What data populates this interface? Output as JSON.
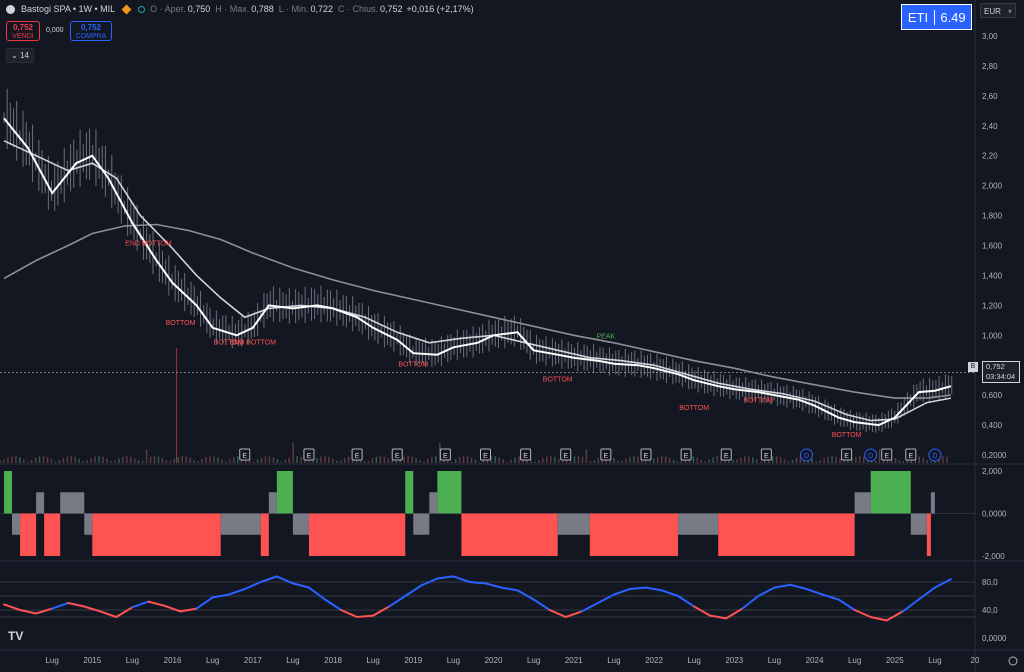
{
  "header": {
    "symbol": "Bastogi SPA • 1W • MIL",
    "open_label": "O · Aper.",
    "open": "0,750",
    "high_label": "H · Max.",
    "high": "0,788",
    "low_label": "L · Min.",
    "low": "0,722",
    "close_label": "C · Chius.",
    "close": "0,752",
    "change": "+0,016 (+2,17%)"
  },
  "trade": {
    "sell_price": "0,752",
    "sell_label": "VENDI",
    "spread": "0,000",
    "buy_price": "0,752",
    "buy_label": "COMPRA"
  },
  "indicator_toggle": "14",
  "badge": {
    "label": "ETI",
    "value": "6.49",
    "color": "#2962ff"
  },
  "currency": "EUR",
  "price_label": {
    "marker": "B",
    "price": "0,752",
    "countdown": "03:34:04"
  },
  "colors": {
    "background": "#131722",
    "bull": "#4caf50",
    "bear": "#ff5252",
    "neutral": "#787b86",
    "osc_up": "#2962ff",
    "osc_down": "#ff5252"
  },
  "chart_data": [
    {
      "type": "line",
      "title": "",
      "price_axis": [
        "3,00",
        "2,80",
        "2,60",
        "2,40",
        "2,20",
        "2,000",
        "1,800",
        "1,600",
        "1,400",
        "1,200",
        "1,000",
        "0,800",
        "0,600",
        "0,400",
        "0,2000"
      ],
      "ylim": [
        0.2,
        3.0
      ],
      "x_ticks": [
        "Lug",
        "2015",
        "Lug",
        "2016",
        "Lug",
        "2017",
        "Lug",
        "2018",
        "Lug",
        "2019",
        "Lug",
        "2020",
        "Lug",
        "2021",
        "Lug",
        "2022",
        "Lug",
        "2023",
        "Lug",
        "2024",
        "Lug",
        "2025",
        "Lug",
        "20"
      ],
      "x_years": [
        2014.5,
        2015,
        2015.5,
        2016,
        2016.5,
        2017,
        2017.5,
        2018,
        2018.5,
        2019,
        2019.5,
        2020,
        2020.5,
        2021,
        2021.5,
        2022,
        2022.5,
        2023,
        2023.5,
        2024,
        2024.5,
        2025,
        2025.5,
        2026
      ],
      "series": [
        {
          "color": "#ffffff",
          "x": [
            2013.9,
            2014.2,
            2014.5,
            2014.8,
            2015.0,
            2015.2,
            2015.5,
            2015.8,
            2016.0,
            2016.3,
            2016.5,
            2016.8,
            2017.0,
            2017.2,
            2017.5,
            2017.8,
            2018.0,
            2018.3,
            2018.5,
            2018.8,
            2019.0,
            2019.3,
            2019.5,
            2019.8,
            2020.0,
            2020.3,
            2020.5,
            2020.8,
            2021.0,
            2021.3,
            2021.5,
            2021.8,
            2022.0,
            2022.3,
            2022.5,
            2022.8,
            2023.0,
            2023.3,
            2023.5,
            2023.8,
            2024.0,
            2024.3,
            2024.5,
            2024.8,
            2025.0,
            2025.3,
            2025.5,
            2025.7
          ],
          "y": [
            2.45,
            2.25,
            1.95,
            2.15,
            2.2,
            2.05,
            1.75,
            1.5,
            1.35,
            1.2,
            1.05,
            1.0,
            1.05,
            1.2,
            1.18,
            1.2,
            1.18,
            1.12,
            1.05,
            0.97,
            0.88,
            0.87,
            0.92,
            0.95,
            1.0,
            1.02,
            0.9,
            0.87,
            0.85,
            0.83,
            0.81,
            0.8,
            0.78,
            0.74,
            0.7,
            0.66,
            0.64,
            0.62,
            0.6,
            0.57,
            0.53,
            0.45,
            0.42,
            0.4,
            0.45,
            0.62,
            0.63,
            0.66
          ]
        },
        {
          "color": "#d1d4dc",
          "x": [
            2013.9,
            2014.3,
            2014.7,
            2015.0,
            2015.3,
            2015.6,
            2016.0,
            2016.3,
            2016.6,
            2016.9,
            2017.2,
            2017.6,
            2018.0,
            2018.4,
            2018.8,
            2019.2,
            2019.6,
            2020.0,
            2020.4,
            2020.8,
            2021.2,
            2021.6,
            2022.0,
            2022.4,
            2022.8,
            2023.2,
            2023.6,
            2024.0,
            2024.4,
            2024.7,
            2025.0,
            2025.4,
            2025.7
          ],
          "y": [
            2.3,
            2.2,
            2.1,
            2.15,
            2.05,
            1.8,
            1.58,
            1.4,
            1.25,
            1.12,
            1.18,
            1.2,
            1.18,
            1.12,
            1.02,
            0.95,
            0.98,
            1.0,
            0.95,
            0.9,
            0.85,
            0.83,
            0.8,
            0.74,
            0.68,
            0.64,
            0.61,
            0.56,
            0.47,
            0.43,
            0.44,
            0.55,
            0.58
          ]
        },
        {
          "color": "#8c8f99",
          "x": [
            2013.9,
            2014.3,
            2014.7,
            2015.0,
            2015.4,
            2015.8,
            2016.2,
            2016.6,
            2017.0,
            2017.5,
            2018.0,
            2018.5,
            2019.0,
            2019.5,
            2020.0,
            2020.5,
            2021.0,
            2021.5,
            2022.0,
            2022.5,
            2023.0,
            2023.5,
            2024.0,
            2024.5,
            2025.0,
            2025.4,
            2025.7
          ],
          "y": [
            1.38,
            1.5,
            1.6,
            1.68,
            1.73,
            1.74,
            1.7,
            1.64,
            1.55,
            1.45,
            1.37,
            1.3,
            1.24,
            1.18,
            1.12,
            1.06,
            1.0,
            0.95,
            0.89,
            0.83,
            0.78,
            0.72,
            0.67,
            0.62,
            0.58,
            0.58,
            0.6
          ]
        }
      ],
      "annotations": [
        {
          "text": "END BOTTOM",
          "x": 2015.7,
          "y": 1.6,
          "color": "#ff5252"
        },
        {
          "text": "BOTTOM",
          "x": 2016.1,
          "y": 1.07,
          "color": "#ff5252"
        },
        {
          "text": "BOTTOM",
          "x": 2016.7,
          "y": 0.94,
          "color": "#ff5252"
        },
        {
          "text": "END BOTTOM",
          "x": 2017.0,
          "y": 0.94,
          "color": "#ff5252"
        },
        {
          "text": "BOTTOM",
          "x": 2019.0,
          "y": 0.79,
          "color": "#ff5252"
        },
        {
          "text": "PEAK",
          "x": 2021.4,
          "y": 0.98,
          "color": "#4caf50"
        },
        {
          "text": "BOTTOM",
          "x": 2020.8,
          "y": 0.69,
          "color": "#ff5252"
        },
        {
          "text": "BOTTOM",
          "x": 2022.5,
          "y": 0.5,
          "color": "#ff5252"
        },
        {
          "text": "BOTTOM",
          "x": 2023.3,
          "y": 0.55,
          "color": "#ff5252"
        },
        {
          "text": "BOTTOM",
          "x": 2024.4,
          "y": 0.32,
          "color": "#ff5252"
        }
      ],
      "event_markers": [
        {
          "x": 2016.9,
          "label": "E"
        },
        {
          "x": 2017.7,
          "label": "E"
        },
        {
          "x": 2018.3,
          "label": "E"
        },
        {
          "x": 2018.8,
          "label": "E"
        },
        {
          "x": 2019.4,
          "label": "E"
        },
        {
          "x": 2019.9,
          "label": "E"
        },
        {
          "x": 2020.4,
          "label": "E"
        },
        {
          "x": 2020.9,
          "label": "E"
        },
        {
          "x": 2021.4,
          "label": "E"
        },
        {
          "x": 2021.9,
          "label": "E"
        },
        {
          "x": 2022.4,
          "label": "E"
        },
        {
          "x": 2022.9,
          "label": "E"
        },
        {
          "x": 2023.4,
          "label": "E"
        },
        {
          "x": 2023.9,
          "label": "D"
        },
        {
          "x": 2024.4,
          "label": "E"
        },
        {
          "x": 2024.7,
          "label": "D"
        },
        {
          "x": 2024.9,
          "label": "E"
        },
        {
          "x": 2025.2,
          "label": "E"
        },
        {
          "x": 2025.5,
          "label": "D"
        }
      ]
    },
    {
      "type": "bar",
      "axis": [
        "2,000",
        "0,0000",
        "-2,000"
      ],
      "ylim": [
        -2,
        2
      ],
      "segments": [
        {
          "x0": 2013.9,
          "x1": 2014.0,
          "v": 2,
          "state": "bull"
        },
        {
          "x0": 2014.0,
          "x1": 2014.1,
          "v": -1,
          "state": "neutral"
        },
        {
          "x0": 2014.1,
          "x1": 2014.3,
          "v": -2,
          "state": "bear"
        },
        {
          "x0": 2014.3,
          "x1": 2014.4,
          "v": 1,
          "state": "neutral"
        },
        {
          "x0": 2014.4,
          "x1": 2014.6,
          "v": -2,
          "state": "bear"
        },
        {
          "x0": 2014.6,
          "x1": 2014.9,
          "v": 1,
          "state": "neutral"
        },
        {
          "x0": 2014.9,
          "x1": 2015.0,
          "v": -1,
          "state": "neutral"
        },
        {
          "x0": 2015.0,
          "x1": 2016.6,
          "v": -2,
          "state": "bear"
        },
        {
          "x0": 2016.6,
          "x1": 2017.1,
          "v": -1,
          "state": "neutral"
        },
        {
          "x0": 2017.1,
          "x1": 2017.2,
          "v": -2,
          "state": "bear"
        },
        {
          "x0": 2017.2,
          "x1": 2017.3,
          "v": 1,
          "state": "neutral"
        },
        {
          "x0": 2017.3,
          "x1": 2017.5,
          "v": 2,
          "state": "bull"
        },
        {
          "x0": 2017.5,
          "x1": 2017.7,
          "v": -1,
          "state": "neutral"
        },
        {
          "x0": 2017.7,
          "x1": 2018.9,
          "v": -2,
          "state": "bear"
        },
        {
          "x0": 2018.9,
          "x1": 2019.0,
          "v": 2,
          "state": "bull"
        },
        {
          "x0": 2019.0,
          "x1": 2019.2,
          "v": -1,
          "state": "neutral"
        },
        {
          "x0": 2019.2,
          "x1": 2019.3,
          "v": 1,
          "state": "neutral"
        },
        {
          "x0": 2019.3,
          "x1": 2019.6,
          "v": 2,
          "state": "bull"
        },
        {
          "x0": 2019.6,
          "x1": 2020.8,
          "v": -2,
          "state": "bear"
        },
        {
          "x0": 2020.8,
          "x1": 2021.2,
          "v": -1,
          "state": "neutral"
        },
        {
          "x0": 2021.2,
          "x1": 2022.3,
          "v": -2,
          "state": "bear"
        },
        {
          "x0": 2022.3,
          "x1": 2022.8,
          "v": -1,
          "state": "neutral"
        },
        {
          "x0": 2022.8,
          "x1": 2024.5,
          "v": -2,
          "state": "bear"
        },
        {
          "x0": 2024.5,
          "x1": 2024.7,
          "v": 1,
          "state": "neutral"
        },
        {
          "x0": 2024.7,
          "x1": 2025.2,
          "v": 2,
          "state": "bull"
        },
        {
          "x0": 2025.2,
          "x1": 2025.4,
          "v": -1,
          "state": "neutral"
        },
        {
          "x0": 2025.4,
          "x1": 2025.45,
          "v": -2,
          "state": "bear"
        },
        {
          "x0": 2025.45,
          "x1": 2025.5,
          "v": 1,
          "state": "neutral"
        }
      ]
    },
    {
      "type": "line",
      "axis": [
        "80,0",
        "40,0",
        "0,0000"
      ],
      "ylim": [
        0,
        100
      ],
      "levels": [
        80,
        60,
        40,
        30
      ],
      "x": [
        2013.9,
        2014.1,
        2014.3,
        2014.5,
        2014.7,
        2014.9,
        2015.1,
        2015.3,
        2015.5,
        2015.7,
        2015.9,
        2016.1,
        2016.3,
        2016.5,
        2016.7,
        2016.9,
        2017.1,
        2017.3,
        2017.5,
        2017.7,
        2017.9,
        2018.1,
        2018.3,
        2018.5,
        2018.7,
        2018.9,
        2019.1,
        2019.3,
        2019.5,
        2019.7,
        2019.9,
        2020.1,
        2020.3,
        2020.5,
        2020.7,
        2020.9,
        2021.1,
        2021.3,
        2021.5,
        2021.7,
        2021.9,
        2022.1,
        2022.3,
        2022.5,
        2022.7,
        2022.9,
        2023.1,
        2023.3,
        2023.5,
        2023.7,
        2023.9,
        2024.1,
        2024.3,
        2024.5,
        2024.7,
        2024.9,
        2025.1,
        2025.3,
        2025.5,
        2025.7
      ],
      "y": [
        48,
        40,
        35,
        42,
        50,
        45,
        38,
        30,
        44,
        52,
        46,
        38,
        42,
        58,
        62,
        70,
        80,
        88,
        78,
        72,
        55,
        40,
        30,
        32,
        45,
        60,
        75,
        85,
        88,
        80,
        78,
        72,
        68,
        55,
        40,
        30,
        38,
        50,
        62,
        70,
        72,
        68,
        60,
        45,
        32,
        28,
        42,
        60,
        72,
        76,
        70,
        62,
        55,
        40,
        30,
        25,
        38,
        55,
        72,
        84
      ]
    }
  ]
}
